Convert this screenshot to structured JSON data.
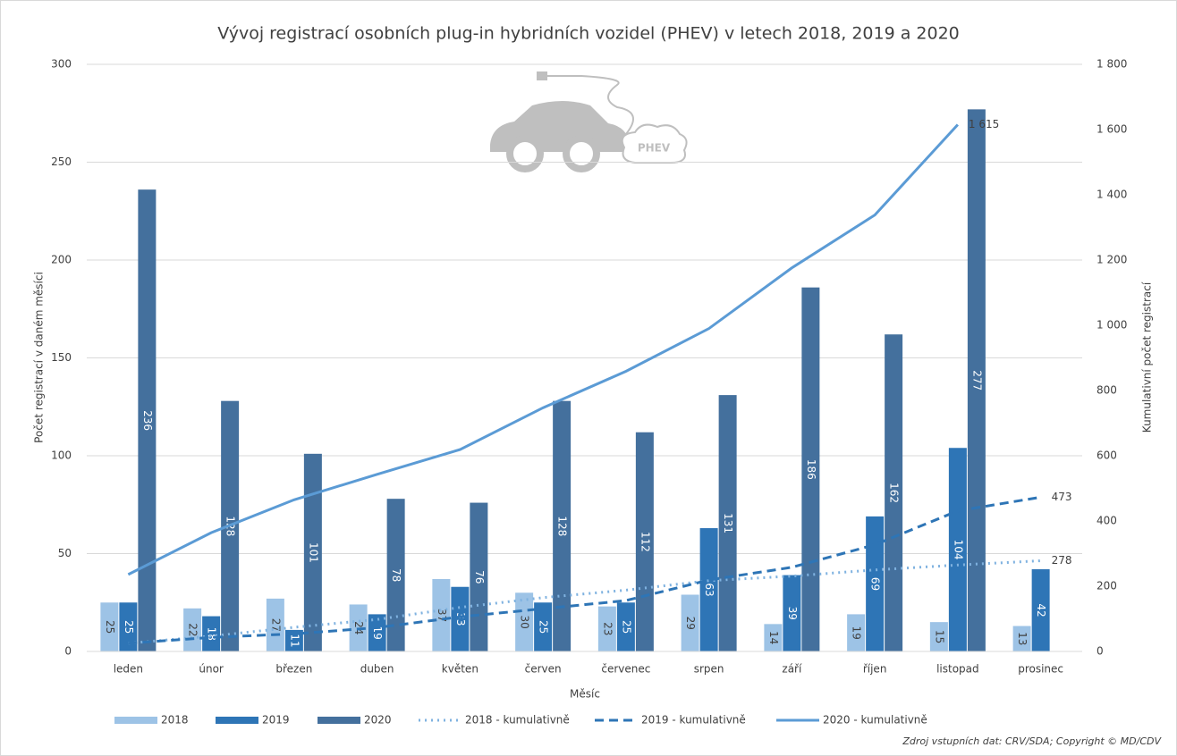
{
  "chart_data": {
    "type": "bar",
    "title": "Vývoj registrací osobních plug-in hybridních vozidel (PHEV) v letech 2018, 2019 a 2020",
    "x_label": "Měsíc",
    "y_label": "Počet registrací v daném měsíci",
    "y2_label": "Kumulativní počet registrací",
    "source": "Zdroj vstupních dat: CRV/SDA; Copyright © MD/CDV",
    "image_label": "PHEV",
    "categories": [
      "leden",
      "únor",
      "březen",
      "duben",
      "květen",
      "červen",
      "červenec",
      "srpen",
      "září",
      "říjen",
      "listopad",
      "prosinec"
    ],
    "ylim": [
      0,
      300
    ],
    "yticks": [
      0,
      50,
      100,
      150,
      200,
      250,
      300
    ],
    "y2lim": [
      0,
      1800
    ],
    "y2ticks": [
      0,
      200,
      400,
      600,
      800,
      {
        "value": 1000,
        "label": "1 000"
      },
      {
        "value": 1200,
        "label": "1 200"
      },
      {
        "value": 1400,
        "label": "1 400"
      },
      {
        "value": 1600,
        "label": "1 600"
      },
      {
        "value": 1800,
        "label": "1 800"
      }
    ],
    "grid": true,
    "legend": "bottom",
    "series": [
      {
        "name": "2018",
        "type": "bar",
        "color": "#9dc3e6",
        "label_color": "#404040",
        "values": [
          25,
          22,
          27,
          24,
          37,
          30,
          23,
          29,
          14,
          19,
          15,
          13
        ]
      },
      {
        "name": "2019",
        "type": "bar",
        "color": "#2e75b6",
        "label_color": "#ffffff",
        "values": [
          25,
          18,
          11,
          19,
          33,
          25,
          25,
          63,
          39,
          69,
          104,
          42
        ]
      },
      {
        "name": "2020",
        "type": "bar",
        "color": "#44709d",
        "label_color": "#ffffff",
        "values": [
          236,
          128,
          101,
          78,
          76,
          128,
          112,
          131,
          186,
          162,
          277,
          null
        ]
      },
      {
        "name": "2018 - kumulativně",
        "type": "line",
        "axis": "y2",
        "dash": "dotted",
        "color": "#7fb2e0",
        "values": [
          25,
          47,
          74,
          98,
          135,
          165,
          188,
          217,
          231,
          250,
          265,
          278
        ],
        "value_labels": [
          null,
          null,
          null,
          null,
          null,
          null,
          null,
          null,
          null,
          null,
          null,
          "278"
        ]
      },
      {
        "name": "2019 - kumulativně",
        "type": "line",
        "axis": "y2",
        "dash": "dashed",
        "color": "#2e75b6",
        "values": [
          25,
          43,
          54,
          73,
          106,
          131,
          156,
          219,
          258,
          327,
          431,
          473
        ],
        "value_labels": [
          null,
          null,
          null,
          null,
          null,
          null,
          null,
          null,
          null,
          null,
          null,
          "473"
        ]
      },
      {
        "name": "2020 - kumulativně",
        "type": "line",
        "axis": "y2",
        "dash": "solid",
        "color": "#5b9bd5",
        "values": [
          236,
          364,
          465,
          543,
          619,
          747,
          859,
          990,
          1176,
          1338,
          1615,
          null
        ],
        "value_labels": [
          null,
          null,
          null,
          null,
          null,
          null,
          null,
          null,
          null,
          null,
          "1 615",
          null
        ]
      }
    ]
  }
}
